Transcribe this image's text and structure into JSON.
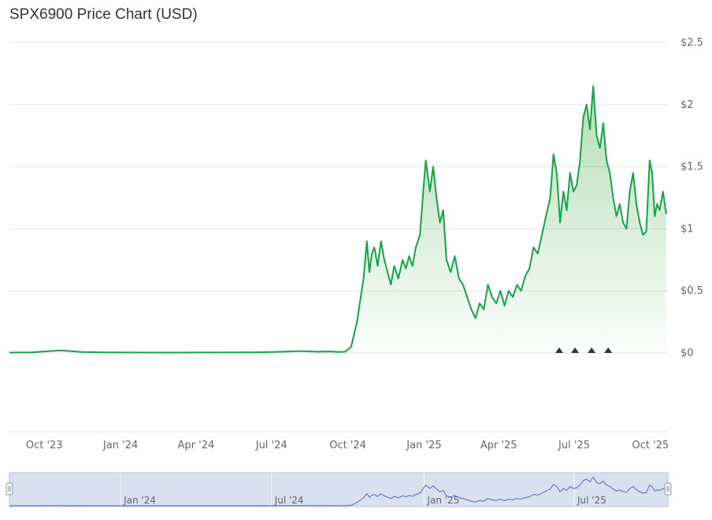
{
  "title": "SPX6900 Price Chart (USD)",
  "colors": {
    "line": "#16a34a",
    "area_top": "#4caf50",
    "grid": "#e6e6e6",
    "navigator_fill": "#ccd6eb",
    "navigator_line": "#4a6cc2",
    "marker": "#333333"
  },
  "chart_data": {
    "type": "area",
    "title": "SPX6900 Price Chart (USD)",
    "xlabel": "",
    "ylabel": "",
    "ylim": [
      0,
      2.5
    ],
    "y_ticks": [
      "$2.5",
      "$2",
      "$1.5",
      "$1",
      "$0.5",
      "$0"
    ],
    "y_tick_values": [
      2.5,
      2,
      1.5,
      1,
      0.5,
      0
    ],
    "x_ticks": [
      "Oct '23",
      "Jan '24",
      "Apr '24",
      "Jul '24",
      "Oct '24",
      "Jan '25",
      "Apr '25",
      "Jul '25",
      "Oct '25"
    ],
    "x_tick_dates": [
      "2023-10-01",
      "2024-01-01",
      "2024-04-01",
      "2024-07-01",
      "2024-10-01",
      "2025-01-01",
      "2025-04-01",
      "2025-07-01",
      "2025-10-01"
    ],
    "x_range": [
      "2023-08-20",
      "2025-10-22"
    ],
    "grid": true,
    "legend": "none",
    "series": [
      {
        "x": [
          "2023-08-20",
          "2023-09-15",
          "2023-10-20",
          "2023-11-15",
          "2023-12-15",
          "2024-01-15",
          "2024-02-15",
          "2024-03-15",
          "2024-04-15",
          "2024-05-15",
          "2024-06-15",
          "2024-07-15",
          "2024-08-05",
          "2024-08-25",
          "2024-09-10",
          "2024-09-20",
          "2024-09-28",
          "2024-10-05",
          "2024-10-12",
          "2024-10-20",
          "2024-10-24",
          "2024-10-27",
          "2024-10-30",
          "2024-11-02",
          "2024-11-06",
          "2024-11-10",
          "2024-11-14",
          "2024-11-18",
          "2024-11-22",
          "2024-11-26",
          "2024-12-01",
          "2024-12-06",
          "2024-12-10",
          "2024-12-14",
          "2024-12-18",
          "2024-12-22",
          "2024-12-27",
          "2024-12-31",
          "2025-01-03",
          "2025-01-08",
          "2025-01-12",
          "2025-01-16",
          "2025-01-20",
          "2025-01-24",
          "2025-01-28",
          "2025-02-02",
          "2025-02-07",
          "2025-02-12",
          "2025-02-17",
          "2025-02-22",
          "2025-02-27",
          "2025-03-04",
          "2025-03-09",
          "2025-03-14",
          "2025-03-19",
          "2025-03-24",
          "2025-03-29",
          "2025-04-03",
          "2025-04-08",
          "2025-04-13",
          "2025-04-18",
          "2025-04-23",
          "2025-04-28",
          "2025-05-03",
          "2025-05-08",
          "2025-05-13",
          "2025-05-18",
          "2025-05-23",
          "2025-05-28",
          "2025-06-02",
          "2025-06-06",
          "2025-06-10",
          "2025-06-14",
          "2025-06-18",
          "2025-06-22",
          "2025-06-26",
          "2025-06-30",
          "2025-07-04",
          "2025-07-08",
          "2025-07-12",
          "2025-07-16",
          "2025-07-20",
          "2025-07-24",
          "2025-07-28",
          "2025-08-01",
          "2025-08-05",
          "2025-08-09",
          "2025-08-13",
          "2025-08-17",
          "2025-08-21",
          "2025-08-25",
          "2025-08-29",
          "2025-09-02",
          "2025-09-06",
          "2025-09-10",
          "2025-09-14",
          "2025-09-18",
          "2025-09-22",
          "2025-09-26",
          "2025-09-30",
          "2025-10-03",
          "2025-10-06",
          "2025-10-09",
          "2025-10-12",
          "2025-10-16",
          "2025-10-20"
        ],
        "values": [
          0.003,
          0.005,
          0.02,
          0.008,
          0.005,
          0.004,
          0.003,
          0.003,
          0.004,
          0.005,
          0.006,
          0.01,
          0.015,
          0.01,
          0.012,
          0.008,
          0.01,
          0.05,
          0.25,
          0.6,
          0.9,
          0.65,
          0.8,
          0.85,
          0.7,
          0.9,
          0.75,
          0.65,
          0.55,
          0.7,
          0.6,
          0.75,
          0.68,
          0.78,
          0.7,
          0.85,
          0.95,
          1.3,
          1.55,
          1.3,
          1.5,
          1.25,
          1.05,
          1.15,
          0.75,
          0.65,
          0.78,
          0.6,
          0.55,
          0.45,
          0.35,
          0.28,
          0.4,
          0.35,
          0.55,
          0.45,
          0.4,
          0.5,
          0.38,
          0.5,
          0.45,
          0.55,
          0.5,
          0.62,
          0.68,
          0.85,
          0.8,
          0.95,
          1.1,
          1.25,
          1.6,
          1.45,
          1.05,
          1.3,
          1.15,
          1.45,
          1.3,
          1.35,
          1.55,
          1.9,
          2.0,
          1.8,
          2.15,
          1.75,
          1.65,
          1.85,
          1.55,
          1.45,
          1.25,
          1.1,
          1.2,
          1.05,
          1.0,
          1.3,
          1.45,
          1.2,
          1.05,
          0.95,
          0.98,
          1.55,
          1.45,
          1.1,
          1.2,
          1.15,
          1.3,
          1.12
        ]
      }
    ],
    "markers": [
      "2025-06-13",
      "2025-07-02",
      "2025-07-22",
      "2025-08-11"
    ],
    "navigator": {
      "x_ticks": [
        "Jan '24",
        "Jul '24",
        "Jan '25",
        "Jul '25"
      ],
      "x_tick_dates": [
        "2024-01-01",
        "2024-07-01",
        "2025-01-01",
        "2025-07-01"
      ]
    }
  }
}
